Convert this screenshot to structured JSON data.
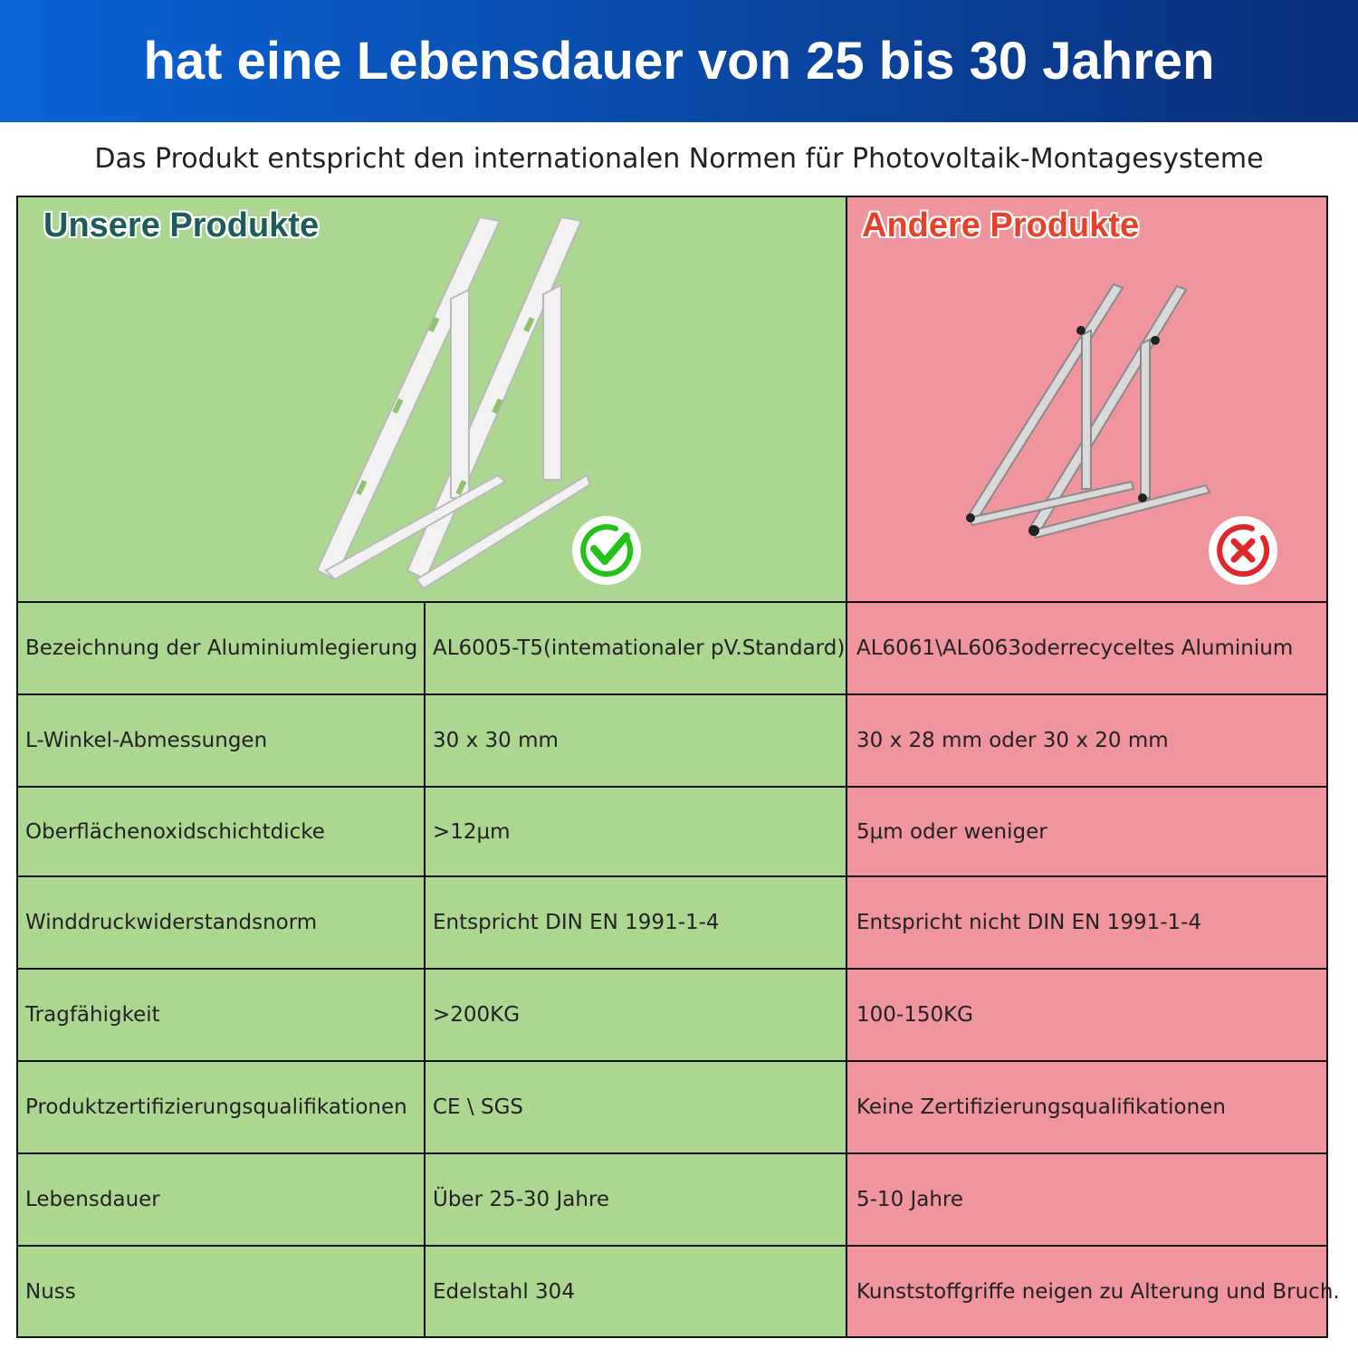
{
  "header": {
    "title": "hat eine Lebensdauer von 25 bis 30 Jahren",
    "subtitle": "Das Produkt entspricht den internationalen Normen für Photovoltaik-Montagesysteme"
  },
  "comparison": {
    "ours_label": "Unsere Produkte",
    "others_label": "Andere Produkte"
  },
  "table": {
    "rows": [
      [
        "Bezeichnung der Aluminiumlegierung",
        "AL6005-T5(intemationaler pV.Standard)",
        "AL6061\\AL6063oderrecyceltes Aluminium"
      ],
      [
        "L-Winkel-Abmessungen",
        "30 x 30 mm",
        "30 x 28 mm oder 30 x 20 mm"
      ],
      [
        "Oberflächenoxidschichtdicke",
        ">12μm",
        "5μm oder weniger"
      ],
      [
        "Winddruckwiderstandsnorm",
        "Entspricht DIN EN 1991-1-4",
        "Entspricht nicht DIN EN 1991-1-4"
      ],
      [
        "Tragfähigkeit",
        ">200KG",
        "100-150KG"
      ],
      [
        "Produktzertifizierungsqualifikationen",
        "CE \\ SGS",
        "Keine Zertifizierungsqualifikationen"
      ],
      [
        "Lebensdauer",
        "Über 25-30 Jahre",
        "5-10 Jahre"
      ],
      [
        "Nuss",
        "Edelstahl 304",
        "Kunststoffgriffe neigen zu Alterung und Bruch."
      ]
    ]
  }
}
